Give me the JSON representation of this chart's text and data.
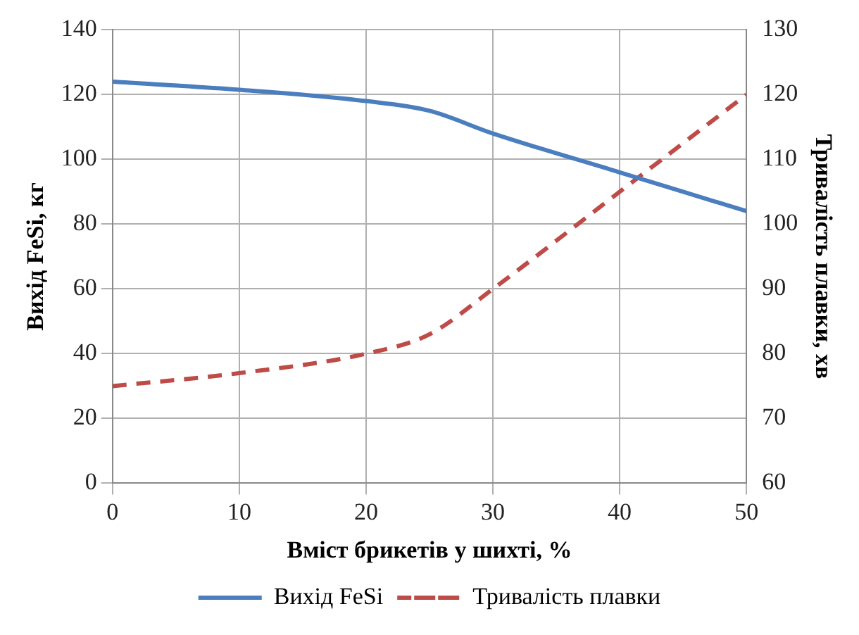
{
  "chart_data": {
    "type": "line",
    "xlabel": "Вміст брикетів у шихті, %",
    "ylabel": "Вихід FeSi, кг",
    "y2label": "Тривалість плавки, хв",
    "xlim": [
      0,
      50
    ],
    "xticks": [
      0,
      10,
      20,
      30,
      40,
      50
    ],
    "ylim": [
      0,
      140
    ],
    "yticks": [
      0,
      20,
      40,
      60,
      80,
      100,
      120,
      140
    ],
    "y2lim": [
      60,
      130
    ],
    "y2ticks": [
      60,
      70,
      80,
      90,
      100,
      110,
      120,
      130
    ],
    "grid": true,
    "legend": "bottom",
    "marker": "none",
    "series": [
      {
        "name": "Вихід FeSi",
        "color": "#4a7ebf",
        "x": [
          0,
          10,
          20,
          25,
          30,
          40,
          50
        ],
        "values": [
          124,
          121.5,
          118,
          115,
          108,
          96,
          84
        ],
        "line_style": "solid"
      },
      {
        "name": "Тривалість плавки",
        "color": "#be4b48",
        "axis": "y2",
        "x": [
          0,
          10,
          20,
          25,
          30,
          40,
          50
        ],
        "values": [
          75,
          77,
          80,
          83,
          90,
          105,
          120
        ],
        "line_style": "dashed"
      }
    ]
  }
}
